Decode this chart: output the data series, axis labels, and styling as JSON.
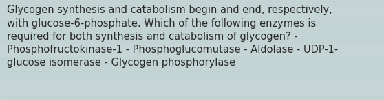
{
  "text_lines": [
    "Glycogen synthesis and catabolism begin and end, respectively,",
    "with glucose-6-phosphate. Which of the following enzymes is",
    "required for both synthesis and catabolism of glycogen? -",
    "Phosphofructokinase-1 - Phosphoglucomutase - Aldolase - UDP-1-",
    "glucose isomerase - Glycogen phosphorylase"
  ],
  "bg_color": "#c5d5d5",
  "text_color": "#2a2a2a",
  "font_size": 10.5,
  "line_alpha": 0.08,
  "line_color": "#7a9a9a"
}
